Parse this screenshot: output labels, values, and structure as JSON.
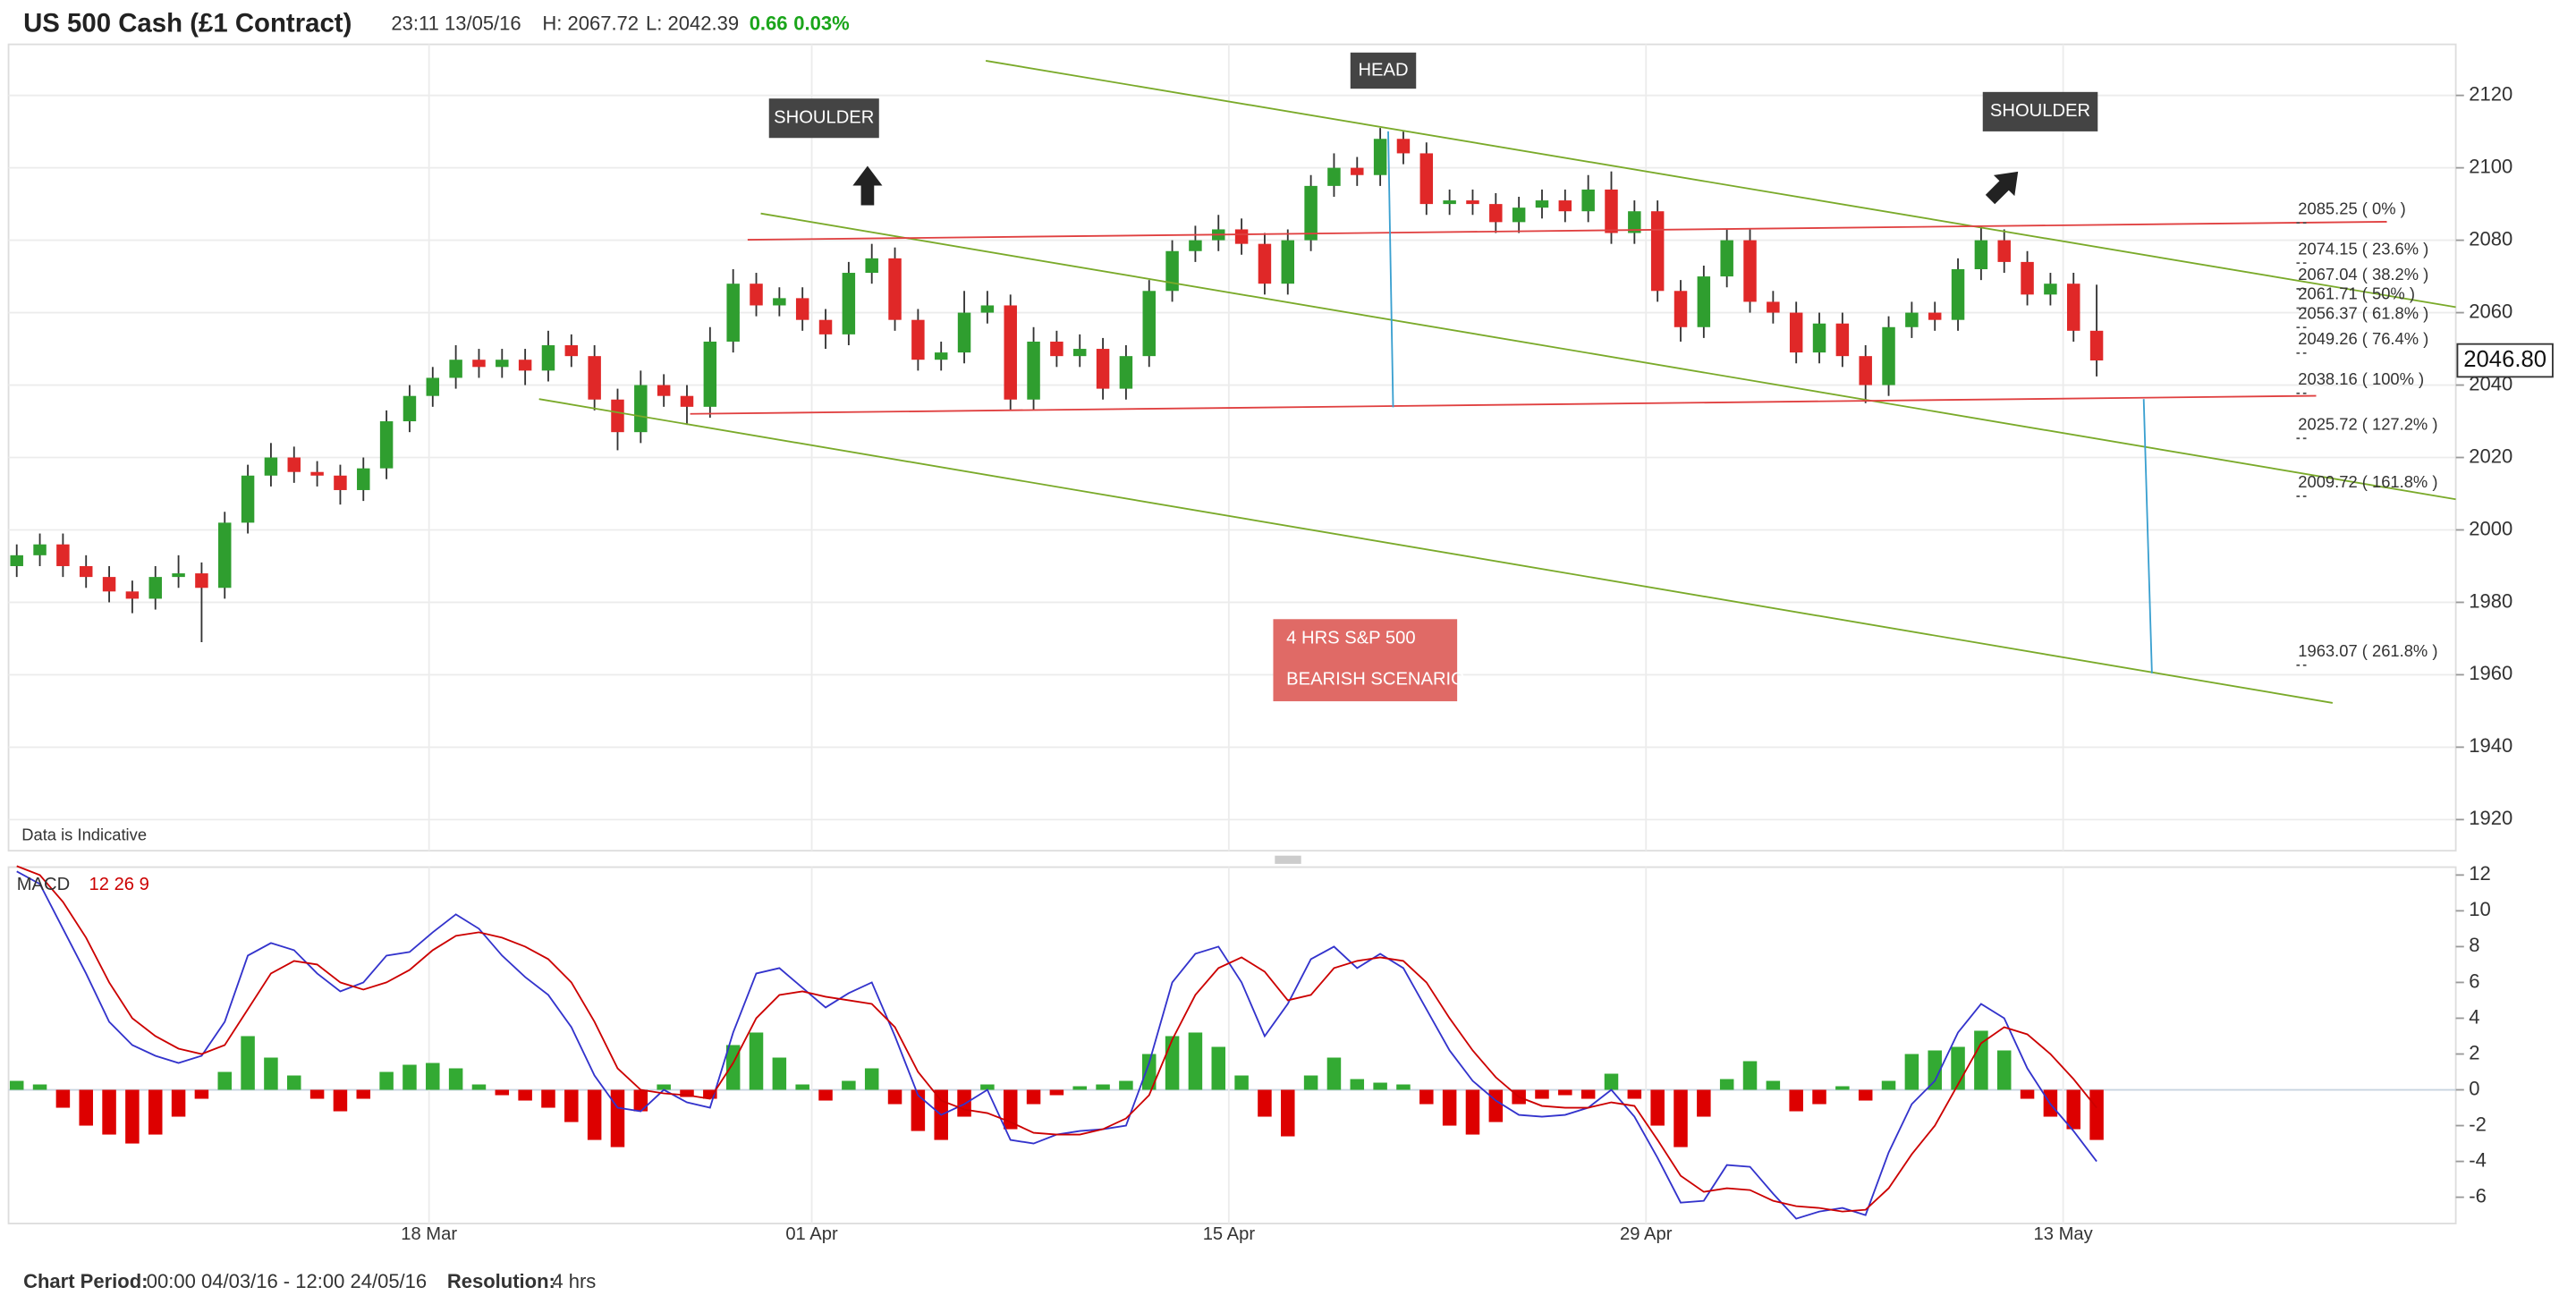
{
  "header": {
    "title": "US 500 Cash (£1 Contract)",
    "time": "23:11 13/05/16",
    "high": "H: 2067.72",
    "low": "L: 2042.39",
    "change": "0.66",
    "change_pct": "0.03%"
  },
  "chart_data": [
    {
      "type": "candlestick",
      "up_color": "#2f9e2f",
      "down_color": "#e02828",
      "candles": [
        [
          1990,
          1996,
          1987,
          1993
        ],
        [
          1993,
          1999,
          1990,
          1996
        ],
        [
          1996,
          1999,
          1987,
          1990
        ],
        [
          1990,
          1993,
          1984,
          1987
        ],
        [
          1987,
          1990,
          1980,
          1983
        ],
        [
          1983,
          1986,
          1977,
          1981
        ],
        [
          1981,
          1990,
          1978,
          1987
        ],
        [
          1987,
          1993,
          1984,
          1988
        ],
        [
          1988,
          1991,
          1969,
          1984
        ],
        [
          1984,
          2005,
          1981,
          2002
        ],
        [
          2002,
          2018,
          1999,
          2015
        ],
        [
          2015,
          2024,
          2012,
          2020
        ],
        [
          2020,
          2023,
          2013,
          2016
        ],
        [
          2016,
          2019,
          2012,
          2015
        ],
        [
          2015,
          2018,
          2007,
          2011
        ],
        [
          2011,
          2020,
          2008,
          2017
        ],
        [
          2017,
          2033,
          2014,
          2030
        ],
        [
          2030,
          2040,
          2027,
          2037
        ],
        [
          2037,
          2045,
          2034,
          2042
        ],
        [
          2042,
          2051,
          2039,
          2047
        ],
        [
          2047,
          2050,
          2042,
          2045
        ],
        [
          2045,
          2050,
          2042,
          2047
        ],
        [
          2047,
          2050,
          2040,
          2044
        ],
        [
          2044,
          2055,
          2041,
          2051
        ],
        [
          2051,
          2054,
          2045,
          2048
        ],
        [
          2048,
          2051,
          2033,
          2036
        ],
        [
          2036,
          2039,
          2022,
          2027
        ],
        [
          2027,
          2044,
          2024,
          2040
        ],
        [
          2040,
          2043,
          2034,
          2037
        ],
        [
          2037,
          2040,
          2029,
          2034
        ],
        [
          2034,
          2056,
          2031,
          2052
        ],
        [
          2052,
          2072,
          2049,
          2068
        ],
        [
          2068,
          2071,
          2059,
          2062
        ],
        [
          2062,
          2067,
          2059,
          2064
        ],
        [
          2064,
          2067,
          2055,
          2058
        ],
        [
          2058,
          2061,
          2050,
          2054
        ],
        [
          2054,
          2074,
          2051,
          2071
        ],
        [
          2071,
          2079,
          2068,
          2075
        ],
        [
          2075,
          2078,
          2055,
          2058
        ],
        [
          2058,
          2061,
          2044,
          2047
        ],
        [
          2047,
          2052,
          2044,
          2049
        ],
        [
          2049,
          2066,
          2046,
          2060
        ],
        [
          2060,
          2066,
          2057,
          2062
        ],
        [
          2062,
          2065,
          2033,
          2036
        ],
        [
          2036,
          2056,
          2033,
          2052
        ],
        [
          2052,
          2055,
          2045,
          2048
        ],
        [
          2048,
          2054,
          2045,
          2050
        ],
        [
          2050,
          2053,
          2036,
          2039
        ],
        [
          2039,
          2051,
          2036,
          2048
        ],
        [
          2048,
          2069,
          2045,
          2066
        ],
        [
          2066,
          2080,
          2063,
          2077
        ],
        [
          2077,
          2084,
          2074,
          2080
        ],
        [
          2080,
          2087,
          2077,
          2083
        ],
        [
          2083,
          2086,
          2076,
          2079
        ],
        [
          2079,
          2082,
          2065,
          2068
        ],
        [
          2068,
          2083,
          2065,
          2080
        ],
        [
          2080,
          2098,
          2077,
          2095
        ],
        [
          2095,
          2104,
          2092,
          2100
        ],
        [
          2100,
          2103,
          2095,
          2098
        ],
        [
          2098,
          2111,
          2095,
          2108
        ],
        [
          2108,
          2110,
          2101,
          2104
        ],
        [
          2104,
          2107,
          2087,
          2090
        ],
        [
          2090,
          2094,
          2087,
          2091
        ],
        [
          2091,
          2094,
          2087,
          2090
        ],
        [
          2090,
          2093,
          2082,
          2085
        ],
        [
          2085,
          2092,
          2082,
          2089
        ],
        [
          2089,
          2094,
          2086,
          2091
        ],
        [
          2091,
          2094,
          2085,
          2088
        ],
        [
          2088,
          2098,
          2085,
          2094
        ],
        [
          2094,
          2099,
          2079,
          2082
        ],
        [
          2082,
          2091,
          2079,
          2088
        ],
        [
          2088,
          2091,
          2063,
          2066
        ],
        [
          2066,
          2069,
          2052,
          2056
        ],
        [
          2056,
          2073,
          2053,
          2070
        ],
        [
          2070,
          2083,
          2067,
          2080
        ],
        [
          2080,
          2083,
          2060,
          2063
        ],
        [
          2063,
          2066,
          2057,
          2060
        ],
        [
          2060,
          2063,
          2046,
          2049
        ],
        [
          2049,
          2060,
          2046,
          2057
        ],
        [
          2057,
          2060,
          2045,
          2048
        ],
        [
          2048,
          2051,
          2035,
          2040
        ],
        [
          2040,
          2059,
          2037,
          2056
        ],
        [
          2056,
          2063,
          2053,
          2060
        ],
        [
          2060,
          2063,
          2055,
          2058
        ],
        [
          2058,
          2075,
          2055,
          2072
        ],
        [
          2072,
          2084,
          2069,
          2080
        ],
        [
          2080,
          2083,
          2071,
          2074
        ],
        [
          2074,
          2077,
          2062,
          2065
        ],
        [
          2065,
          2071,
          2062,
          2068
        ],
        [
          2068,
          2071,
          2052,
          2055
        ],
        [
          2055,
          2067.72,
          2042.39,
          2046.8
        ]
      ],
      "xlim": [
        -0.355,
        105.54
      ],
      "ylim": [
        1911.4,
        2134.1
      ],
      "yticks": [
        1920,
        1940,
        1960,
        1980,
        2000,
        2020,
        2040,
        2060,
        2080,
        2100,
        2120
      ],
      "grid": true,
      "last_price": {
        "value": 2046.8,
        "label": "2046.80"
      },
      "fib_levels": [
        {
          "value": 2085.25,
          "label": "2085.25 ( 0% )"
        },
        {
          "value": 2074.15,
          "label": "2074.15 ( 23.6% )"
        },
        {
          "value": 2067.04,
          "label": "2067.04 ( 38.2% )"
        },
        {
          "value": 2061.71,
          "label": "2061.71 ( 50% )"
        },
        {
          "value": 2056.37,
          "label": "2056.37 ( 61.8% )"
        },
        {
          "value": 2049.26,
          "label": "2049.26 ( 76.4% )"
        },
        {
          "value": 2038.16,
          "label": "2038.16 ( 100% )"
        },
        {
          "value": 2025.72,
          "label": "2025.72 ( 127.2% )"
        },
        {
          "value": 2009.72,
          "label": "2009.72 ( 161.8% )"
        },
        {
          "value": 1963.07,
          "label": "1963.07 ( 261.8% )"
        }
      ],
      "annotations": [
        "SHOULDER",
        "HEAD",
        "SHOULDER",
        "4 HRS S&P 500",
        "BEARISH SCENARIO"
      ],
      "note": "Data is Indicative"
    },
    {
      "type": "macd",
      "title": "MACD",
      "params": "12 26 9",
      "series": [
        {
          "color": "#3333cc",
          "values": [
            12.2,
            11.5,
            9,
            6.5,
            3.8,
            2.5,
            1.9,
            1.5,
            1.9,
            3.8,
            7.5,
            8.2,
            7.8,
            6.5,
            5.5,
            6,
            7.5,
            7.7,
            8.8,
            9.8,
            9,
            7.5,
            6.3,
            5.3,
            3.5,
            0.8,
            -1,
            -1.2,
            0,
            -0.7,
            -1,
            3.2,
            6.5,
            6.8,
            5.7,
            4.6,
            5.4,
            6,
            3,
            -0.3,
            -1.4,
            -0.8,
            0,
            -2.8,
            -3,
            -2.5,
            -2.3,
            -2.2,
            -2,
            1.5,
            6,
            7.6,
            8,
            6,
            3,
            4.8,
            7.3,
            8,
            6.8,
            7.6,
            6.8,
            4.5,
            2.2,
            0.5,
            -0.6,
            -1.4,
            -1.5,
            -1.4,
            -1,
            0,
            -1.5,
            -3.8,
            -6.3,
            -6.2,
            -4.2,
            -4.3,
            -5.8,
            -7.2,
            -6.8,
            -6.6,
            -7,
            -3.5,
            -0.8,
            0.5,
            3.2,
            4.8,
            4,
            1.2,
            -0.8,
            -2.3,
            -4
          ]
        },
        {
          "color": "#cc0000",
          "values": [
            12.5,
            12,
            10.5,
            8.5,
            6,
            4,
            3,
            2.3,
            2,
            2.5,
            4.5,
            6.5,
            7.2,
            7,
            6,
            5.6,
            6,
            6.7,
            7.8,
            8.6,
            8.8,
            8.5,
            8,
            7.3,
            6,
            3.8,
            1.2,
            0,
            -0.2,
            -0.3,
            -0.5,
            1.5,
            4,
            5.3,
            5.5,
            5.2,
            5,
            4.8,
            3.5,
            1,
            -0.6,
            -1.1,
            -1.3,
            -1.8,
            -2.4,
            -2.5,
            -2.5,
            -2.2,
            -1.6,
            -0.3,
            2.8,
            5.3,
            6.8,
            7.4,
            6.6,
            5,
            5.3,
            6.8,
            7.2,
            7.4,
            7.2,
            6,
            4,
            2.2,
            0.7,
            -0.4,
            -0.9,
            -1,
            -1,
            -0.7,
            -0.9,
            -2.8,
            -4.8,
            -5.7,
            -5.5,
            -5.6,
            -6.2,
            -6.5,
            -6.6,
            -6.8,
            -6.7,
            -5.5,
            -3.6,
            -2,
            0.3,
            2.6,
            3.5,
            3.1,
            2,
            0.6,
            -1
          ]
        }
      ],
      "histogram": {
        "up_color": "#33aa33",
        "down_color": "#dd0000",
        "values": [
          0.5,
          0.3,
          -1,
          -2,
          -2.5,
          -3,
          -2.5,
          -1.5,
          -0.5,
          1,
          3,
          1.8,
          0.8,
          -0.5,
          -1.2,
          -0.5,
          1,
          1.4,
          1.5,
          1.2,
          0.3,
          -0.3,
          -0.6,
          -1,
          -1.8,
          -2.8,
          -3.2,
          -1.2,
          0.3,
          -0.4,
          -0.5,
          2.5,
          3.2,
          1.8,
          0.3,
          -0.6,
          0.5,
          1.2,
          -0.8,
          -2.3,
          -2.8,
          -1.5,
          0.3,
          -2.2,
          -0.8,
          -0.3,
          0.2,
          0.3,
          0.5,
          2,
          3,
          3.2,
          2.4,
          0.8,
          -1.5,
          -2.6,
          0.8,
          1.8,
          0.6,
          0.4,
          0.3,
          -0.8,
          -2,
          -2.5,
          -1.8,
          -0.8,
          -0.5,
          -0.3,
          -0.5,
          0.9,
          -0.5,
          -2,
          -3.2,
          -1.5,
          0.6,
          1.6,
          0.5,
          -1.2,
          -0.8,
          0.2,
          -0.6,
          0.5,
          2,
          2.2,
          2.4,
          3.3,
          2.2,
          -0.5,
          -1.5,
          -2.2,
          -2.8
        ]
      },
      "xlim": [
        -0.355,
        105.54
      ],
      "xticks": [
        {
          "value": 17.84,
          "label": "18 Mar"
        },
        {
          "value": 34.4,
          "label": "01 Apr"
        },
        {
          "value": 52.45,
          "label": "15 Apr"
        },
        {
          "value": 70.5,
          "label": "29 Apr"
        },
        {
          "value": 88.55,
          "label": "13 May"
        }
      ],
      "ylim": [
        -7.47,
        12.44
      ],
      "yticks": [
        12,
        10,
        8,
        6,
        4,
        2,
        0,
        -2,
        -4,
        -6
      ],
      "grid": true
    }
  ],
  "footer": {
    "period_label": "Chart Period:",
    "period": "00:00 04/03/16 - 12:00 24/05/16",
    "resolution_label": "Resolution:",
    "resolution": "4 hrs"
  }
}
